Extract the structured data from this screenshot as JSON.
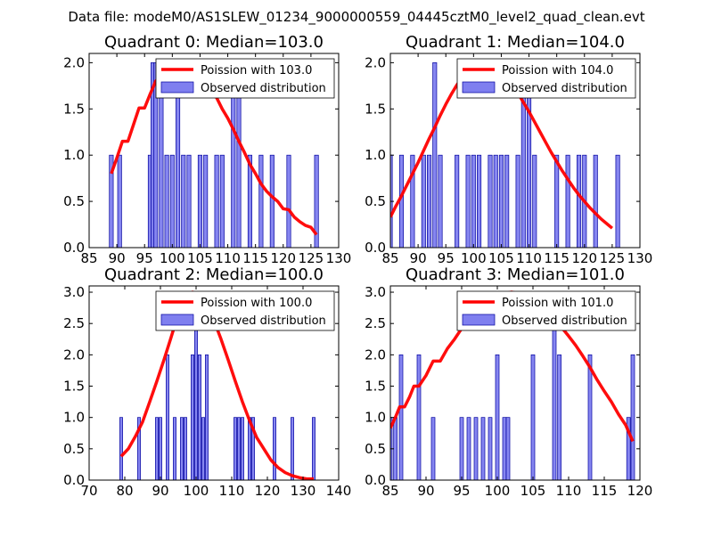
{
  "figure_title": "Data file: modeM0/AS1SLEW_01234_9000000559_04445cztM0_level2_quad_clean.evt",
  "colors": {
    "bar_fill": "#7f7fef",
    "bar_edge": "#00009e",
    "curve": "#ff0000",
    "axis": "#000000"
  },
  "chart_data": [
    {
      "type": "bar",
      "title": "Quadrant 0: Median=103.0",
      "xlim": [
        85,
        130
      ],
      "ylim": [
        0,
        2.1
      ],
      "xticks": [
        85,
        90,
        95,
        100,
        105,
        110,
        115,
        120,
        125,
        130
      ],
      "yticks": [
        0.0,
        0.5,
        1.0,
        1.5,
        2.0
      ],
      "bar_width": 0.7,
      "legend": {
        "position": "top-right",
        "line_label": "Poission with 103.0",
        "bar_label": "Observed distribution"
      },
      "histogram": {
        "x": [
          89,
          90.5,
          96,
          96.5,
          97,
          98,
          99,
          100,
          101,
          102,
          103,
          105,
          106,
          108,
          109,
          111,
          112,
          114,
          116,
          118,
          121,
          126
        ],
        "values": [
          1,
          1,
          1,
          2,
          2,
          2,
          1,
          1,
          2,
          1,
          1,
          1,
          1,
          1,
          1,
          2,
          2,
          1,
          1,
          1,
          1,
          1
        ]
      },
      "poisson_curve": {
        "x": [
          89,
          90,
          91,
          92,
          93,
          94,
          95,
          96,
          97,
          98,
          99,
          100,
          101,
          102,
          103,
          104,
          105,
          106,
          107,
          108,
          109,
          110,
          111,
          112,
          113,
          114,
          115,
          116,
          117,
          118,
          119,
          120,
          121,
          122,
          123,
          124,
          125,
          126
        ],
        "values": [
          0.8,
          0.97,
          1.15,
          1.15,
          1.33,
          1.51,
          1.51,
          1.66,
          1.8,
          1.85,
          1.93,
          1.97,
          2.0,
          2.0,
          1.97,
          1.93,
          1.85,
          1.77,
          1.7,
          1.62,
          1.5,
          1.4,
          1.28,
          1.15,
          1.03,
          0.9,
          0.8,
          0.69,
          0.61,
          0.55,
          0.5,
          0.42,
          0.41,
          0.33,
          0.28,
          0.24,
          0.22,
          0.14
        ]
      }
    },
    {
      "type": "bar",
      "title": "Quadrant 1: Median=104.0",
      "xlim": [
        85,
        130
      ],
      "ylim": [
        0,
        2.1
      ],
      "xticks": [
        85,
        90,
        95,
        100,
        105,
        110,
        115,
        120,
        125,
        130
      ],
      "yticks": [
        0.0,
        0.5,
        1.0,
        1.5,
        2.0
      ],
      "bar_width": 0.7,
      "legend": {
        "position": "top-right",
        "line_label": "Poission with 104.0",
        "bar_label": "Observed distribution"
      },
      "histogram": {
        "x": [
          85,
          87,
          89,
          91,
          92,
          93,
          94,
          97,
          99,
          100,
          101,
          103,
          104,
          105,
          106,
          108,
          109,
          110,
          111,
          115,
          117,
          119,
          120,
          122,
          126
        ],
        "values": [
          1,
          1,
          1,
          1,
          1,
          2,
          1,
          1,
          1,
          1,
          1,
          1,
          1,
          1,
          1,
          1,
          2,
          2,
          1,
          1,
          1,
          1,
          1,
          1,
          1
        ]
      },
      "poisson_curve": {
        "x": [
          85,
          86,
          87,
          88,
          89,
          90,
          91,
          92,
          93,
          94,
          95,
          96,
          97,
          98,
          99,
          100,
          101,
          102,
          103,
          104,
          105,
          106,
          107,
          108,
          109,
          110,
          111,
          112,
          113,
          114,
          115,
          116,
          117,
          118,
          119,
          120,
          121,
          122,
          123,
          124,
          125
        ],
        "values": [
          0.33,
          0.45,
          0.56,
          0.68,
          0.8,
          0.92,
          1.05,
          1.18,
          1.3,
          1.43,
          1.55,
          1.66,
          1.76,
          1.84,
          1.91,
          1.96,
          1.99,
          2.0,
          1.99,
          1.96,
          1.91,
          1.84,
          1.76,
          1.67,
          1.57,
          1.47,
          1.36,
          1.25,
          1.14,
          1.03,
          0.93,
          0.83,
          0.74,
          0.65,
          0.57,
          0.5,
          0.43,
          0.37,
          0.31,
          0.26,
          0.21
        ]
      }
    },
    {
      "type": "bar",
      "title": "Quadrant 2: Median=100.0",
      "xlim": [
        70,
        140
      ],
      "ylim": [
        0,
        3.1
      ],
      "xticks": [
        70,
        80,
        90,
        100,
        110,
        120,
        130,
        140
      ],
      "yticks": [
        0.0,
        0.5,
        1.0,
        1.5,
        2.0,
        2.5,
        3.0
      ],
      "bar_width": 0.8,
      "legend": {
        "position": "top-right",
        "line_label": "Poission with 100.0",
        "bar_label": "Observed distribution"
      },
      "histogram": {
        "x": [
          79,
          84,
          89,
          90,
          92,
          94,
          96,
          97,
          99,
          100,
          101,
          102,
          103,
          111,
          112,
          113,
          115,
          116,
          122,
          127,
          133
        ],
        "values": [
          1,
          1,
          1,
          1,
          2,
          1,
          1,
          1,
          2,
          3,
          2,
          1,
          2,
          1,
          1,
          1,
          1,
          1,
          1,
          1,
          1
        ]
      },
      "poisson_curve": {
        "x": [
          79,
          81,
          83,
          85,
          87,
          89,
          91,
          93,
          95,
          97,
          99,
          101,
          103,
          105,
          107,
          109,
          111,
          113,
          115,
          117,
          119,
          121,
          123,
          125,
          127,
          129,
          131,
          133
        ],
        "values": [
          0.38,
          0.5,
          0.7,
          0.93,
          1.25,
          1.58,
          1.92,
          2.28,
          2.65,
          2.88,
          3.0,
          2.95,
          2.8,
          2.55,
          2.25,
          1.92,
          1.58,
          1.25,
          0.95,
          0.68,
          0.5,
          0.32,
          0.2,
          0.12,
          0.07,
          0.04,
          0.02,
          0.02
        ]
      }
    },
    {
      "type": "bar",
      "title": "Quadrant 3: Median=101.0",
      "xlim": [
        85,
        120
      ],
      "ylim": [
        0,
        3.1
      ],
      "xticks": [
        85,
        90,
        95,
        100,
        105,
        110,
        115,
        120
      ],
      "yticks": [
        0.0,
        0.5,
        1.0,
        1.5,
        2.0,
        2.5,
        3.0
      ],
      "bar_width": 0.5,
      "legend": {
        "position": "top-right",
        "line_label": "Poission with 101.0",
        "bar_label": "Observed distribution"
      },
      "histogram": {
        "x": [
          85,
          85.7,
          86.5,
          89,
          91,
          95,
          96,
          97,
          98,
          99,
          100,
          101,
          101.5,
          105,
          108,
          108.7,
          113,
          118.4,
          119
        ],
        "values": [
          1,
          1,
          2,
          2,
          1,
          1,
          1,
          1,
          1,
          1,
          2,
          1,
          1,
          2,
          3,
          2,
          2,
          1,
          2
        ]
      },
      "poisson_curve": {
        "x": [
          85,
          85.7,
          86.3,
          87,
          87.7,
          88.3,
          89,
          90,
          91,
          92,
          93,
          94,
          95,
          96,
          97,
          98,
          99,
          100,
          101,
          102,
          103,
          104,
          105,
          106,
          107,
          108,
          109,
          110,
          111,
          112,
          113,
          114,
          115,
          116,
          117,
          118,
          119
        ],
        "values": [
          0.83,
          1.0,
          1.17,
          1.17,
          1.33,
          1.5,
          1.5,
          1.67,
          1.9,
          1.9,
          2.1,
          2.25,
          2.42,
          2.45,
          2.6,
          2.7,
          2.8,
          2.9,
          2.98,
          3.0,
          2.98,
          2.95,
          2.88,
          2.8,
          2.7,
          2.58,
          2.44,
          2.3,
          2.15,
          1.98,
          1.8,
          1.6,
          1.42,
          1.25,
          1.05,
          0.88,
          0.62
        ]
      }
    }
  ]
}
